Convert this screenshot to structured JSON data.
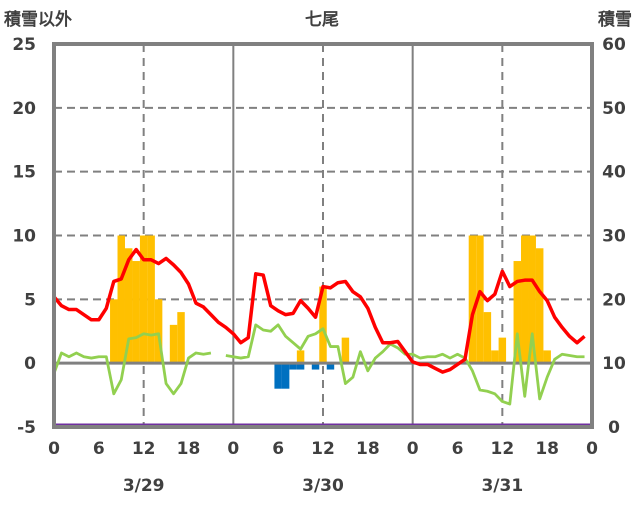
{
  "chart_data": {
    "type": "bar+line",
    "title": "七尾",
    "ylabel_left": "積雪以外",
    "ylabel_right": "積雪",
    "ylim_left": [
      -5,
      25
    ],
    "ylim_right": [
      0,
      60
    ],
    "yticks_left": [
      "25",
      "20",
      "15",
      "10",
      "5",
      "0",
      "-5"
    ],
    "yticks_right": [
      "60",
      "50",
      "40",
      "30",
      "20",
      "10",
      "0"
    ],
    "xlim_hours": [
      0,
      72
    ],
    "xticks": [
      "0",
      "6",
      "12",
      "18",
      "0",
      "6",
      "12",
      "18",
      "0",
      "6",
      "12",
      "18",
      "0"
    ],
    "day_labels": [
      "3/29",
      "3/30",
      "3/31"
    ],
    "grid": true,
    "colors": {
      "snowfall_pos": "#FFC000",
      "snowfall_neg": "#0070C0",
      "red_line": "#FF0000",
      "green_line": "#92D050",
      "snow_depth": "#7030A0",
      "frame": "#808080"
    },
    "bars_positive": [
      {
        "h": 8,
        "v": 5
      },
      {
        "h": 9,
        "v": 10
      },
      {
        "h": 10,
        "v": 9
      },
      {
        "h": 11,
        "v": 8
      },
      {
        "h": 12,
        "v": 10
      },
      {
        "h": 13,
        "v": 10
      },
      {
        "h": 14,
        "v": 5
      },
      {
        "h": 16,
        "v": 3
      },
      {
        "h": 17,
        "v": 4
      },
      {
        "h": 33,
        "v": 1
      },
      {
        "h": 36,
        "v": 6
      },
      {
        "h": 39,
        "v": 2
      },
      {
        "h": 56,
        "v": 10
      },
      {
        "h": 57,
        "v": 10
      },
      {
        "h": 58,
        "v": 4
      },
      {
        "h": 59,
        "v": 1
      },
      {
        "h": 60,
        "v": 2
      },
      {
        "h": 62,
        "v": 8
      },
      {
        "h": 63,
        "v": 10
      },
      {
        "h": 64,
        "v": 10
      },
      {
        "h": 65,
        "v": 9
      },
      {
        "h": 66,
        "v": 1
      }
    ],
    "bars_negative": [
      {
        "h": 30,
        "v": -2
      },
      {
        "h": 31,
        "v": -2
      },
      {
        "h": 32,
        "v": -0.5
      },
      {
        "h": 33,
        "v": -0.5
      },
      {
        "h": 35,
        "v": -0.5
      },
      {
        "h": 37,
        "v": -0.5
      }
    ],
    "red_series": [
      5.2,
      4.5,
      4.2,
      4.2,
      3.8,
      3.4,
      3.4,
      4.3,
      6.4,
      6.6,
      8.1,
      8.9,
      8.1,
      8.1,
      7.8,
      8.2,
      7.7,
      7.1,
      6.2,
      4.7,
      4.4,
      3.8,
      3.2,
      2.8,
      2.3,
      1.6,
      2.0,
      7.0,
      6.9,
      4.5,
      4.1,
      3.8,
      3.9,
      4.9,
      4.3,
      3.6,
      6.0,
      5.9,
      6.3,
      6.4,
      5.6,
      5.2,
      4.3,
      2.8,
      1.6,
      1.6,
      1.7,
      0.9,
      0.1,
      -0.1,
      -0.1,
      -0.4,
      -0.7,
      -0.5,
      -0.1,
      0.3,
      3.8,
      5.6,
      4.9,
      5.4,
      7.2,
      6.0,
      6.4,
      6.5,
      6.5,
      5.6,
      4.9,
      3.6,
      2.8,
      2.1,
      1.6,
      2.1
    ],
    "green_series": [
      -0.8,
      0.8,
      0.5,
      0.8,
      0.5,
      0.4,
      0.5,
      0.5,
      -2.4,
      -1.3,
      1.9,
      2.0,
      2.3,
      2.2,
      2.3,
      -1.6,
      -2.4,
      -1.6,
      0.4,
      0.8,
      0.7,
      0.8,
      null,
      0.6,
      0.5,
      0.4,
      0.5,
      3.0,
      2.6,
      2.5,
      3.0,
      2.1,
      1.6,
      1.1,
      2.1,
      2.3,
      2.7,
      1.3,
      1.3,
      -1.6,
      -1.1,
      0.9,
      -0.6,
      0.4,
      0.9,
      1.5,
      1.2,
      0.7,
      0.7,
      0.4,
      0.5,
      0.5,
      0.7,
      0.4,
      0.7,
      0.4,
      -0.6,
      -2.1,
      -2.2,
      -2.4,
      -3.0,
      -3.2,
      2.3,
      -2.6,
      2.3,
      -2.8,
      -1.1,
      0.3,
      0.7,
      0.6,
      0.5,
      0.5
    ],
    "snow_depth_series_right": {
      "from_hour": 0,
      "to_hour": 72,
      "value": 0
    }
  }
}
